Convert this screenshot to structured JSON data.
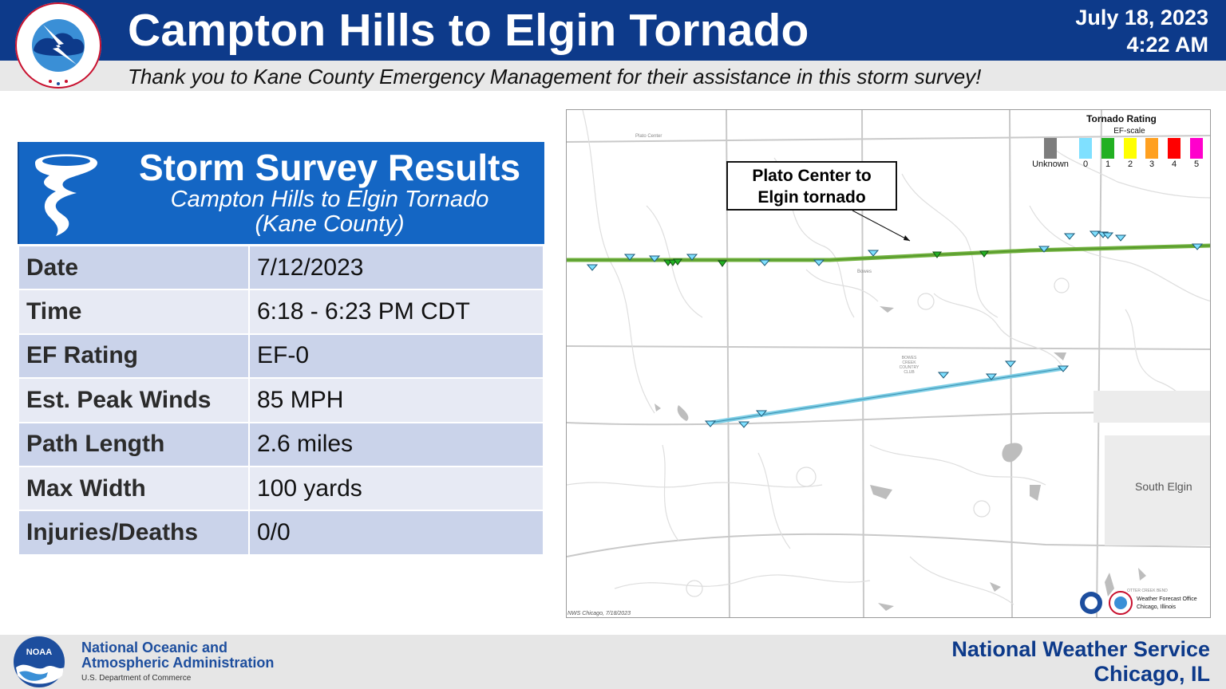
{
  "header": {
    "title": "Campton Hills to Elgin Tornado",
    "date": "July 18, 2023",
    "time": "4:22 AM",
    "subtitle": "Thank you to Kane County Emergency Management for their assistance in this storm survey!",
    "logo_text": "NATIONAL WEATHER SERVICE"
  },
  "results": {
    "title": "Storm Survey Results",
    "sub1": "Campton Hills to Elgin Tornado",
    "sub2": "(Kane County)",
    "rows": [
      {
        "label": "Date",
        "value": "7/12/2023"
      },
      {
        "label": "Time",
        "value": "6:18 - 6:23 PM CDT"
      },
      {
        "label": "EF Rating",
        "value": "EF-0"
      },
      {
        "label": "Est. Peak Winds",
        "value": "85 MPH"
      },
      {
        "label": "Path Length",
        "value": "2.6 miles"
      },
      {
        "label": "Max Width",
        "value": "100 yards"
      },
      {
        "label": "Injuries/Deaths",
        "value": "0/0"
      }
    ]
  },
  "map": {
    "callout_line1": "Plato Center to",
    "callout_line2": "Elgin tornado",
    "legend_title": "Tornado Rating",
    "legend_subtitle": "EF-scale",
    "legend": [
      {
        "label": "Unknown",
        "color": "#7d7d7d"
      },
      {
        "label": "0",
        "color": "#7fe0ff"
      },
      {
        "label": "1",
        "color": "#22b022"
      },
      {
        "label": "2",
        "color": "#ffff00"
      },
      {
        "label": "3",
        "color": "#ffa020"
      },
      {
        "label": "4",
        "color": "#ff0000"
      },
      {
        "label": "5",
        "color": "#ff00cc"
      }
    ],
    "place_south_elgin": "South Elgin",
    "place_plato_center": "Plato Center",
    "place_bowes": "Bowes",
    "place_club": "BOWES CREEK COUNTRY CLUB",
    "place_otter_creek": "OTTER CREEK BEND",
    "stamp": "NWS Chicago, 7/18/2023",
    "wfo_line1": "Weather Forecast Office",
    "wfo_line2": "Chicago, Illinois",
    "track_colors": {
      "ef1_track": "#6fb03c",
      "ef0_track": "#7fcfe6"
    }
  },
  "footer": {
    "noaa_name1": "National Oceanic and",
    "noaa_name2": "Atmospheric Administration",
    "noaa_dept": "U.S. Department of Commerce",
    "noaa_logo_text": "NOAA",
    "nws_name": "National Weather Service",
    "nws_city": "Chicago, IL"
  }
}
